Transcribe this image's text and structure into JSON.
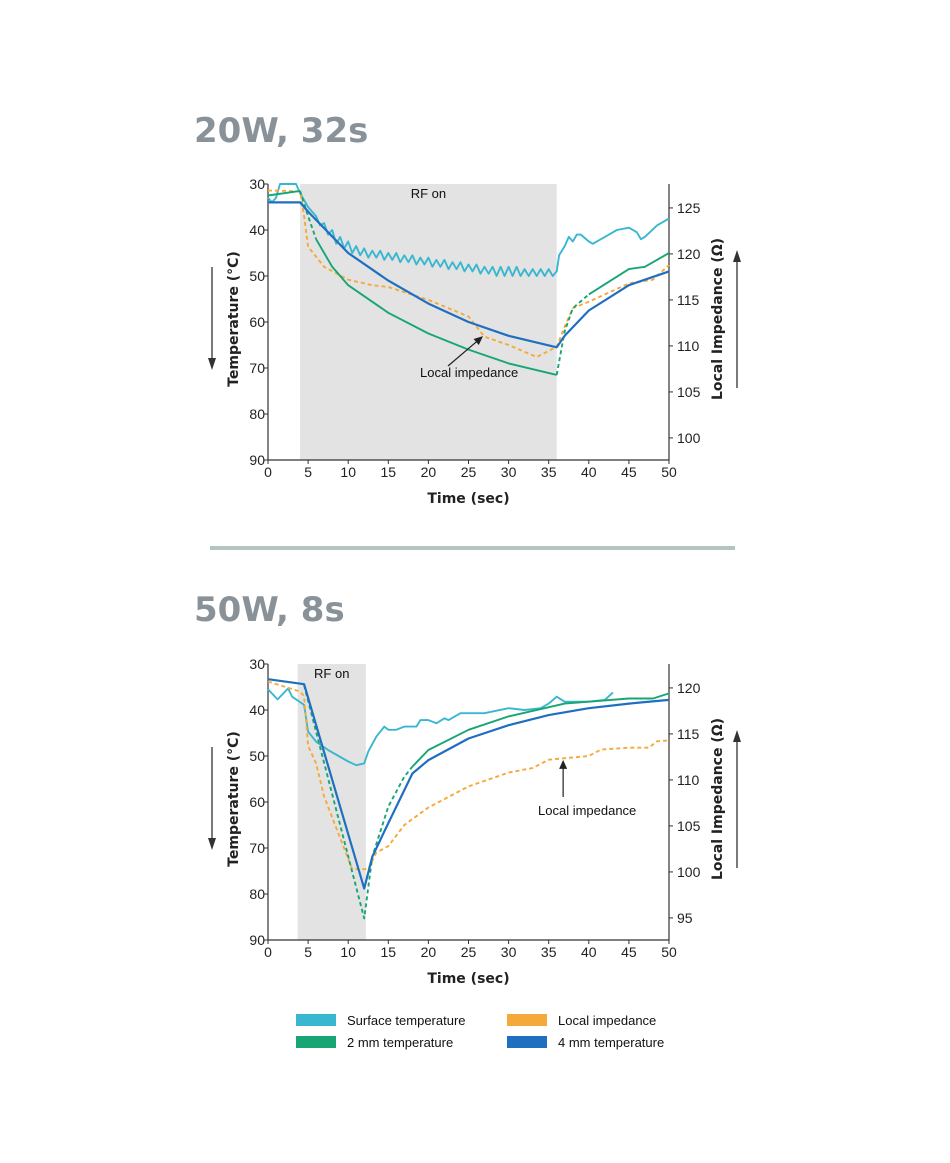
{
  "colors": {
    "surface": "#3ab7d0",
    "mm2": "#17a673",
    "impedance": "#f6a93b",
    "mm4": "#1f6fc0",
    "rf_band": "#e3e3e3",
    "heading": "#8a9299",
    "divider": "#b5c4c0"
  },
  "legend": [
    {
      "key": "surface",
      "label": "Surface temperature"
    },
    {
      "key": "impedance",
      "label": "Local impedance"
    },
    {
      "key": "mm2",
      "label": "2 mm temperature"
    },
    {
      "key": "mm4",
      "label": "4 mm temperature"
    }
  ],
  "chart_data": [
    {
      "type": "line",
      "title": "20W, 32s",
      "xlabel": "Time (sec)",
      "ylabel": "Temperature (°C)",
      "y2label": "Local Impedance (Ω)",
      "xlim": [
        0,
        50
      ],
      "xticks": [
        0,
        5,
        10,
        15,
        20,
        25,
        30,
        35,
        40,
        45,
        50
      ],
      "ylim": [
        30,
        90
      ],
      "y_inverted": true,
      "yticks": [
        30,
        40,
        50,
        60,
        70,
        80,
        90
      ],
      "y2lim": [
        97.6,
        127.6
      ],
      "y2ticks": [
        100,
        105,
        110,
        115,
        120,
        125
      ],
      "rf_band": {
        "label": "RF on",
        "from": 4,
        "to": 36
      },
      "annotation": {
        "text": "Local impedance",
        "target": [
          27,
          111.2
        ]
      },
      "series": [
        {
          "key": "surface",
          "name": "Surface temperature",
          "axis": "left",
          "points": [
            [
              0,
              33
            ],
            [
              0.5,
              34
            ],
            [
              1,
              33
            ],
            [
              1.5,
              30
            ],
            [
              3.5,
              30
            ],
            [
              4,
              32
            ],
            [
              5,
              35
            ],
            [
              6,
              37
            ],
            [
              6.5,
              39
            ],
            [
              7,
              38.5
            ],
            [
              7.5,
              41
            ],
            [
              8,
              40
            ],
            [
              8.5,
              43
            ],
            [
              9,
              41.5
            ],
            [
              9.5,
              44
            ],
            [
              10,
              42.5
            ],
            [
              10.5,
              45
            ],
            [
              11,
              43.5
            ],
            [
              11.5,
              45.5
            ],
            [
              12,
              44
            ],
            [
              12.5,
              46
            ],
            [
              13,
              44.5
            ],
            [
              13.5,
              46
            ],
            [
              14,
              44.5
            ],
            [
              14.5,
              46.5
            ],
            [
              15,
              45
            ],
            [
              15.5,
              46.5
            ],
            [
              16,
              45
            ],
            [
              16.5,
              47
            ],
            [
              17,
              45.5
            ],
            [
              17.5,
              47
            ],
            [
              18,
              45.5
            ],
            [
              18.5,
              47.5
            ],
            [
              19,
              46
            ],
            [
              19.5,
              47.5
            ],
            [
              20,
              46
            ],
            [
              20.5,
              48
            ],
            [
              21,
              46.5
            ],
            [
              21.5,
              48
            ],
            [
              22,
              46.5
            ],
            [
              22.5,
              48.5
            ],
            [
              23,
              47
            ],
            [
              23.5,
              48.5
            ],
            [
              24,
              47
            ],
            [
              24.5,
              49
            ],
            [
              25,
              47.5
            ],
            [
              25.5,
              49
            ],
            [
              26,
              47.5
            ],
            [
              26.5,
              49.5
            ],
            [
              27,
              48
            ],
            [
              27.5,
              49.5
            ],
            [
              28,
              48
            ],
            [
              28.5,
              50
            ],
            [
              29,
              48
            ],
            [
              29.5,
              50
            ],
            [
              30,
              48
            ],
            [
              30.5,
              50
            ],
            [
              31,
              48
            ],
            [
              31.5,
              50
            ],
            [
              32,
              48.5
            ],
            [
              32.5,
              50
            ],
            [
              33,
              48.5
            ],
            [
              33.5,
              50
            ],
            [
              34,
              48.5
            ],
            [
              34.5,
              50
            ],
            [
              35,
              48.5
            ],
            [
              35.5,
              50
            ],
            [
              36,
              49
            ],
            [
              36.3,
              45.5
            ],
            [
              37,
              43.5
            ],
            [
              37.5,
              41.5
            ],
            [
              38,
              42.5
            ],
            [
              38.5,
              41
            ],
            [
              39,
              41
            ],
            [
              40,
              42.5
            ],
            [
              40.5,
              43
            ],
            [
              42,
              41.5
            ],
            [
              43.5,
              40
            ],
            [
              45,
              39.5
            ],
            [
              46,
              40.5
            ],
            [
              46.5,
              42
            ],
            [
              47,
              41.5
            ],
            [
              48.5,
              39
            ],
            [
              50,
              37.5
            ]
          ]
        },
        {
          "key": "mm2",
          "name": "2 mm temperature",
          "axis": "left",
          "dashed_ranges": [
            [
              4,
              6
            ],
            [
              36,
              39.5
            ]
          ],
          "points": [
            [
              0,
              32.5
            ],
            [
              4,
              31.5
            ],
            [
              5,
              37
            ],
            [
              6,
              42
            ],
            [
              8,
              48
            ],
            [
              10,
              52
            ],
            [
              15,
              58
            ],
            [
              20,
              62.5
            ],
            [
              25,
              66
            ],
            [
              30,
              69
            ],
            [
              36,
              71.5
            ],
            [
              37,
              62
            ],
            [
              38,
              57
            ],
            [
              40,
              54
            ],
            [
              45,
              48.5
            ],
            [
              47,
              48
            ],
            [
              50,
              45
            ]
          ]
        },
        {
          "key": "mm4",
          "name": "4 mm temperature",
          "axis": "left",
          "points": [
            [
              0,
              34
            ],
            [
              4,
              34
            ],
            [
              5,
              36
            ],
            [
              10,
              45
            ],
            [
              15,
              51
            ],
            [
              20,
              56
            ],
            [
              25,
              60
            ],
            [
              30,
              63
            ],
            [
              36,
              65.5
            ],
            [
              37,
              63
            ],
            [
              40,
              57.5
            ],
            [
              45,
              52
            ],
            [
              50,
              49
            ]
          ]
        },
        {
          "key": "impedance",
          "name": "Local impedance",
          "axis": "right",
          "dashed": true,
          "points": [
            [
              0,
              126.9
            ],
            [
              4,
              126.8
            ],
            [
              4.5,
              124.1
            ],
            [
              5,
              120.8
            ],
            [
              7,
              118.6
            ],
            [
              10,
              117.2
            ],
            [
              13,
              116.6
            ],
            [
              15,
              116.4
            ],
            [
              20,
              115
            ],
            [
              25,
              113.2
            ],
            [
              27,
              111
            ],
            [
              30,
              110.1
            ],
            [
              33.5,
              108.8
            ],
            [
              36,
              109.9
            ],
            [
              37,
              112.1
            ],
            [
              38,
              114.1
            ],
            [
              40,
              114.8
            ],
            [
              45,
              116.8
            ],
            [
              48,
              117.2
            ],
            [
              50,
              118.8
            ]
          ]
        }
      ]
    },
    {
      "type": "line",
      "title": "50W, 8s",
      "xlabel": "Time (sec)",
      "ylabel": "Temperature (°C)",
      "y2label": "Local Impedance (Ω)",
      "xlim": [
        0,
        50
      ],
      "xticks": [
        0,
        5,
        10,
        15,
        20,
        25,
        30,
        35,
        40,
        45,
        50
      ],
      "ylim": [
        30,
        90
      ],
      "y_inverted": true,
      "yticks": [
        30,
        40,
        50,
        60,
        70,
        80,
        90
      ],
      "y2lim": [
        92.6,
        122.6
      ],
      "y2ticks": [
        95,
        100,
        105,
        110,
        115,
        120
      ],
      "rf_band": {
        "label": "RF on",
        "from": 3.7,
        "to": 12.2
      },
      "annotation": {
        "text": "Local impedance",
        "target": [
          36.8,
          112.4
        ]
      },
      "series": [
        {
          "key": "surface",
          "name": "Surface temperature",
          "axis": "left",
          "points": [
            [
              0,
              35.5
            ],
            [
              1.2,
              37.7
            ],
            [
              2.5,
              35.3
            ],
            [
              3,
              37.1
            ],
            [
              4.5,
              38.9
            ],
            [
              5,
              44.7
            ],
            [
              6,
              46.9
            ],
            [
              7.5,
              48.7
            ],
            [
              10,
              51.2
            ],
            [
              11,
              52
            ],
            [
              12,
              51.6
            ],
            [
              12.5,
              49
            ],
            [
              13.5,
              45.8
            ],
            [
              14.5,
              43.6
            ],
            [
              15,
              44.3
            ],
            [
              16,
              44.3
            ],
            [
              17,
              43.6
            ],
            [
              18.5,
              43.6
            ],
            [
              19,
              42.2
            ],
            [
              20,
              42.2
            ],
            [
              21,
              42.9
            ],
            [
              22,
              41.8
            ],
            [
              22.5,
              42.2
            ],
            [
              24,
              40.7
            ],
            [
              27,
              40.7
            ],
            [
              30,
              39.6
            ],
            [
              32,
              40
            ],
            [
              34,
              39.6
            ],
            [
              35,
              38.6
            ],
            [
              36,
              37.1
            ],
            [
              37,
              38.2
            ],
            [
              40,
              38.2
            ],
            [
              42,
              37.8
            ],
            [
              43,
              36.2
            ]
          ]
        },
        {
          "key": "mm2",
          "name": "2 mm temperature",
          "axis": "left",
          "dashed_ranges": [
            [
              4.5,
              17.5
            ]
          ],
          "points": [
            [
              4.5,
              34.6
            ],
            [
              12,
              85.3
            ],
            [
              13,
              71.9
            ],
            [
              15,
              61
            ],
            [
              17,
              54.5
            ],
            [
              18,
              52.3
            ],
            [
              20,
              48.7
            ],
            [
              25,
              44.3
            ],
            [
              30,
              41.4
            ],
            [
              37,
              38.6
            ],
            [
              45,
              37.5
            ],
            [
              48,
              37.5
            ],
            [
              50,
              36.4
            ]
          ]
        },
        {
          "key": "mm4",
          "name": "4 mm temperature",
          "axis": "left",
          "points": [
            [
              0,
              33.3
            ],
            [
              4.5,
              34.4
            ],
            [
              12,
              78.8
            ],
            [
              13,
              71.9
            ],
            [
              15,
              64.6
            ],
            [
              18,
              53.8
            ],
            [
              20,
              50.9
            ],
            [
              25,
              46.2
            ],
            [
              30,
              43.3
            ],
            [
              35,
              41.1
            ],
            [
              40,
              39.6
            ],
            [
              45,
              38.6
            ],
            [
              50,
              37.8
            ]
          ]
        },
        {
          "key": "impedance",
          "name": "Local impedance",
          "axis": "right",
          "dashed": true,
          "points": [
            [
              0,
              120.7
            ],
            [
              4,
              119.6
            ],
            [
              4.5,
              119.1
            ],
            [
              5,
              113.7
            ],
            [
              6,
              111.8
            ],
            [
              7,
              108.2
            ],
            [
              10.5,
              100.3
            ],
            [
              12.5,
              100.3
            ],
            [
              13.5,
              102.1
            ],
            [
              15,
              102.8
            ],
            [
              17,
              105.1
            ],
            [
              20,
              107
            ],
            [
              25,
              109.3
            ],
            [
              30,
              110.8
            ],
            [
              33,
              111.3
            ],
            [
              35,
              112.2
            ],
            [
              40,
              112.6
            ],
            [
              41.5,
              113.3
            ],
            [
              45,
              113.5
            ],
            [
              47.5,
              113.5
            ],
            [
              48.5,
              114.2
            ],
            [
              50,
              114.3
            ]
          ]
        }
      ]
    }
  ]
}
